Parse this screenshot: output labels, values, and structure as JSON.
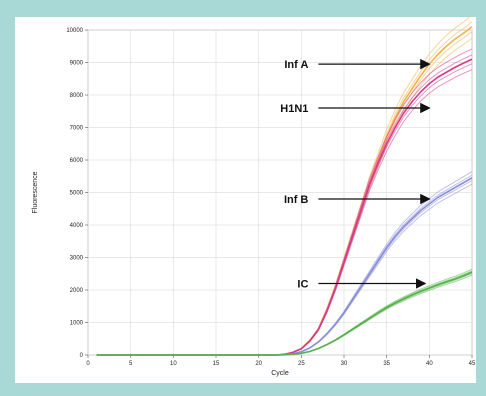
{
  "chart_data": {
    "type": "line",
    "title": "",
    "xlabel": "Cycle",
    "ylabel": "Fluorescence",
    "xlim": [
      0,
      45
    ],
    "ylim": [
      0,
      10000
    ],
    "x_ticks": [
      0,
      5,
      10,
      15,
      20,
      25,
      30,
      35,
      40,
      45
    ],
    "y_ticks": [
      0,
      1000,
      2000,
      3000,
      4000,
      5000,
      6000,
      7000,
      8000,
      9000,
      10000
    ],
    "grid": true,
    "x": [
      1,
      5,
      10,
      15,
      20,
      22,
      23,
      24,
      25,
      26,
      27,
      28,
      29,
      30,
      31,
      32,
      33,
      34,
      35,
      36,
      37,
      38,
      39,
      40,
      41,
      42,
      43,
      44,
      45
    ],
    "series": [
      {
        "color": "#f2b24a",
        "values": [
          0,
          0,
          0,
          0,
          0,
          0,
          20,
          80,
          200,
          450,
          800,
          1400,
          2100,
          2900,
          3700,
          4500,
          5300,
          6000,
          6700,
          7300,
          7800,
          8200,
          8600,
          8950,
          9250,
          9500,
          9720,
          9900,
          10100
        ]
      },
      {
        "color": "#d63a8c",
        "values": [
          0,
          0,
          0,
          0,
          0,
          0,
          20,
          80,
          190,
          430,
          780,
          1350,
          2050,
          2850,
          3650,
          4450,
          5250,
          5900,
          6500,
          7000,
          7450,
          7800,
          8100,
          8350,
          8550,
          8700,
          8850,
          8980,
          9100
        ]
      },
      {
        "color": "#8a8fd8",
        "values": [
          0,
          0,
          0,
          0,
          0,
          0,
          10,
          40,
          100,
          220,
          400,
          650,
          950,
          1300,
          1700,
          2100,
          2500,
          2900,
          3300,
          3650,
          3950,
          4200,
          4450,
          4650,
          4850,
          5000,
          5150,
          5300,
          5450
        ]
      },
      {
        "color": "#55b24a",
        "values": [
          0,
          0,
          0,
          0,
          0,
          0,
          5,
          20,
          50,
          110,
          200,
          320,
          460,
          620,
          790,
          960,
          1130,
          1300,
          1460,
          1600,
          1730,
          1850,
          1960,
          2060,
          2160,
          2250,
          2340,
          2440,
          2550
        ]
      }
    ],
    "annotations": [
      {
        "label": "Inf A",
        "arrow_from": [
          27,
          8950
        ],
        "arrow_to": [
          40,
          8950
        ]
      },
      {
        "label": "H1N1",
        "arrow_from": [
          27,
          7600
        ],
        "arrow_to": [
          40,
          7600
        ]
      },
      {
        "label": "Inf B",
        "arrow_from": [
          27,
          4800
        ],
        "arrow_to": [
          40,
          4800
        ]
      },
      {
        "label": "IC",
        "arrow_from": [
          27,
          2200
        ],
        "arrow_to": [
          39.5,
          2200
        ]
      }
    ]
  }
}
